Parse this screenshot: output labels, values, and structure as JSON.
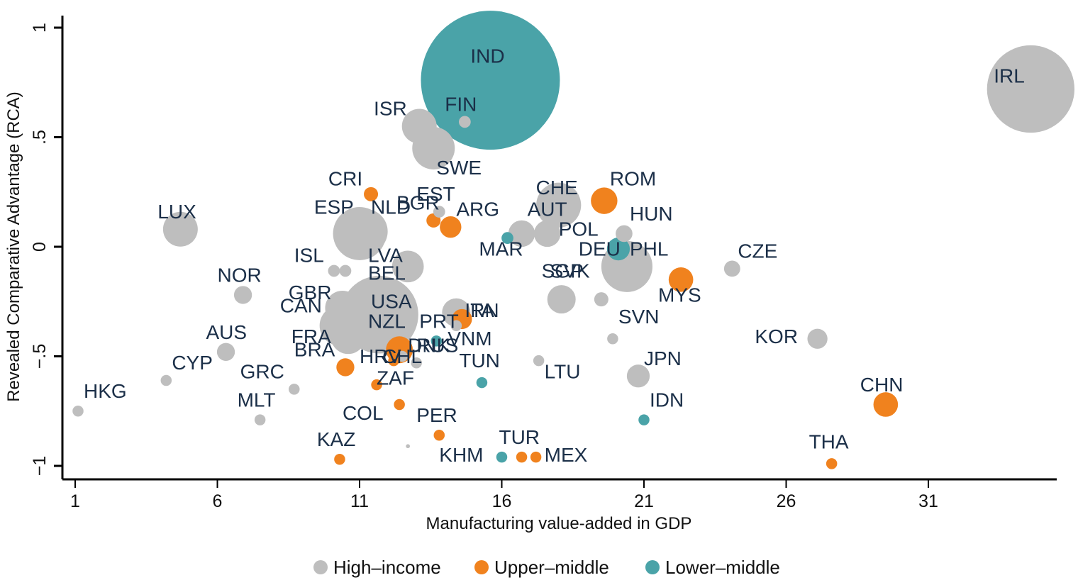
{
  "chart_data": {
    "type": "scatter",
    "title": "",
    "xlabel": "Manufacturing value-added in GDP",
    "ylabel": "Revealed Comparative Advantage (RCA)",
    "xlim": [
      0.8,
      35.5
    ],
    "ylim": [
      -1.05,
      1.05
    ],
    "xticks": [
      1,
      6,
      11,
      16,
      21,
      26,
      31
    ],
    "xtick_labels": [
      "1",
      "6",
      "11",
      "16",
      "21",
      "26",
      "31"
    ],
    "yticks": [
      1,
      0.5,
      0,
      -0.5,
      -1
    ],
    "ytick_labels": [
      "1",
      ".5",
      "0",
      "-.5",
      "-1"
    ],
    "grid": false,
    "legend": {
      "placement": "bottom",
      "entries": [
        {
          "name": "High-income",
          "color": "#bebebe"
        },
        {
          "name": "Upper-middle",
          "color": "#f0821e"
        },
        {
          "name": "Lower-middle",
          "color": "#4aa3a8"
        }
      ]
    },
    "size_note": "bubble size = relative weight",
    "points": [
      {
        "label": "IND",
        "x": 15.6,
        "y": 0.76,
        "size": 96,
        "group": "Lower-middle",
        "lx": -0.7,
        "ly": 0.08
      },
      {
        "label": "IRL",
        "x": 34.6,
        "y": 0.72,
        "size": 38,
        "group": "High-income",
        "lx": -1.3,
        "ly": 0.03
      },
      {
        "label": "USA",
        "x": 11.7,
        "y": -0.31,
        "size": 30,
        "group": "High-income",
        "lx": -0.3,
        "ly": 0.03
      },
      {
        "label": "ESP",
        "x": 11.0,
        "y": 0.06,
        "size": 14,
        "group": "High-income",
        "lx": -1.6,
        "ly": 0.09
      },
      {
        "label": "NLD",
        "x": 11.2,
        "y": 0.07,
        "size": 10,
        "group": "High-income",
        "lx": 0.2,
        "ly": 0.08
      },
      {
        "label": "DEU",
        "x": 20.4,
        "y": -0.09,
        "size": 13,
        "group": "High-income",
        "lx": -1.7,
        "ly": 0.05
      },
      {
        "label": "CHE",
        "x": 18.0,
        "y": 0.19,
        "size": 10,
        "group": "High-income",
        "lx": -0.8,
        "ly": 0.05
      },
      {
        "label": "SWE",
        "x": 13.6,
        "y": 0.45,
        "size": 9,
        "group": "High-income",
        "lx": 0.1,
        "ly": -0.12
      },
      {
        "label": "CAN",
        "x": 10.3,
        "y": -0.36,
        "size": 8,
        "group": "High-income",
        "lx": -2.1,
        "ly": 0.06
      },
      {
        "label": "GBR",
        "x": 10.4,
        "y": -0.28,
        "size": 6,
        "group": "High-income",
        "lx": -1.9,
        "ly": 0.04
      },
      {
        "label": "FRA",
        "x": 10.6,
        "y": -0.41,
        "size": 6,
        "group": "High-income",
        "lx": -2.0,
        "ly": -0.03
      },
      {
        "label": "NZL",
        "x": 11.9,
        "y": -0.33,
        "size": 5,
        "group": "High-income",
        "lx": -0.6,
        "ly": -0.04
      },
      {
        "label": "ISR",
        "x": 13.1,
        "y": 0.55,
        "size": 6,
        "group": "High-income",
        "lx": -1.6,
        "ly": 0.05
      },
      {
        "label": "LUX",
        "x": 4.7,
        "y": 0.08,
        "size": 6,
        "group": "High-income",
        "lx": -0.8,
        "ly": 0.05
      },
      {
        "label": "LVA",
        "x": 12.7,
        "y": -0.09,
        "size": 5,
        "group": "High-income",
        "lx": -1.4,
        "ly": 0.02
      },
      {
        "label": "ITA",
        "x": 14.4,
        "y": -0.3,
        "size": 4,
        "group": "High-income",
        "lx": 0.3,
        "ly": -0.02
      },
      {
        "label": "IRN",
        "x": 14.6,
        "y": -0.33,
        "size": 2,
        "group": "Upper-middle",
        "lx": 0.1,
        "ly": 0.01
      },
      {
        "label": "SGP",
        "x": 18.1,
        "y": -0.24,
        "size": 4,
        "group": "High-income",
        "lx": -0.7,
        "ly": 0.1
      },
      {
        "label": "SVK",
        "x": 19.5,
        "y": -0.24,
        "size": 1,
        "group": "High-income",
        "lx": -1.8,
        "ly": 0.1
      },
      {
        "label": "AUT",
        "x": 16.7,
        "y": 0.06,
        "size": 3.5,
        "group": "High-income",
        "lx": 0.2,
        "ly": 0.08
      },
      {
        "label": "POL",
        "x": 17.6,
        "y": 0.06,
        "size": 3.5,
        "group": "Upper-middle-hi",
        "lx": 0.4,
        "ly": -0.01
      },
      {
        "label": "ROM",
        "x": 19.6,
        "y": 0.21,
        "size": 3.5,
        "group": "Upper-middle",
        "lx": 0.2,
        "ly": 0.07
      },
      {
        "label": "MYS",
        "x": 22.3,
        "y": -0.15,
        "size": 3,
        "group": "Upper-middle",
        "lx": -0.8,
        "ly": -0.1
      },
      {
        "label": "CHN",
        "x": 29.5,
        "y": -0.72,
        "size": 3,
        "group": "Upper-middle",
        "lx": -0.9,
        "ly": 0.06
      },
      {
        "label": "JPN",
        "x": 20.8,
        "y": -0.59,
        "size": 2.6,
        "group": "High-income",
        "lx": 0.2,
        "ly": 0.05
      },
      {
        "label": "PHL",
        "x": 20.1,
        "y": -0.01,
        "size": 2.6,
        "group": "Lower-middle",
        "lx": 0.4,
        "ly": -0.03
      },
      {
        "label": "RUS",
        "x": 12.4,
        "y": -0.47,
        "size": 3.6,
        "group": "Upper-middle",
        "lx": 0.6,
        "ly": -0.01
      },
      {
        "label": "KOR",
        "x": 27.1,
        "y": -0.42,
        "size": 2,
        "group": "High-income",
        "lx": -2.2,
        "ly": -0.02
      },
      {
        "label": "ARG",
        "x": 14.2,
        "y": 0.09,
        "size": 2.3,
        "group": "Upper-middle",
        "lx": 0.2,
        "ly": 0.05
      },
      {
        "label": "BRA",
        "x": 10.5,
        "y": -0.55,
        "size": 1.6,
        "group": "Upper-middle",
        "lx": -1.8,
        "ly": 0.05
      },
      {
        "label": "AUS",
        "x": 6.3,
        "y": -0.48,
        "size": 1.6,
        "group": "High-income",
        "lx": -0.7,
        "ly": 0.06
      },
      {
        "label": "NOR",
        "x": 6.9,
        "y": -0.22,
        "size": 1.6,
        "group": "High-income",
        "lx": -0.9,
        "ly": 0.06
      },
      {
        "label": "HUN",
        "x": 20.3,
        "y": 0.06,
        "size": 1.4,
        "group": "High-income",
        "lx": 0.2,
        "ly": 0.06
      },
      {
        "label": "CZE",
        "x": 24.1,
        "y": -0.1,
        "size": 1.3,
        "group": "High-income",
        "lx": 0.2,
        "ly": 0.05
      },
      {
        "label": "CRI",
        "x": 11.4,
        "y": 0.24,
        "size": 1,
        "group": "Upper-middle",
        "lx": -1.5,
        "ly": 0.04
      },
      {
        "label": "BGR",
        "x": 13.6,
        "y": 0.12,
        "size": 1,
        "group": "Upper-middle",
        "lx": -1.3,
        "ly": 0.05
      },
      {
        "label": "EST",
        "x": 13.8,
        "y": 0.16,
        "size": 0.7,
        "group": "High-income",
        "lx": -0.8,
        "ly": 0.05
      },
      {
        "label": "FIN",
        "x": 14.7,
        "y": 0.57,
        "size": 0.7,
        "group": "High-income",
        "lx": -0.7,
        "ly": 0.05
      },
      {
        "label": "MAR",
        "x": 16.2,
        "y": 0.04,
        "size": 0.7,
        "group": "Lower-middle",
        "lx": -1.0,
        "ly": -0.08
      },
      {
        "label": "ISL",
        "x": 10.1,
        "y": -0.11,
        "size": 0.7,
        "group": "High-income",
        "lx": -1.4,
        "ly": 0.04
      },
      {
        "label": "BEL",
        "x": 10.5,
        "y": -0.11,
        "size": 0.7,
        "group": "High-income",
        "lx": 0.8,
        "ly": -0.04
      },
      {
        "label": "PRT",
        "x": 14.4,
        "y": -0.36,
        "size": 0.6,
        "group": "High-income",
        "lx": -1.3,
        "ly": -0.01
      },
      {
        "label": "VNM",
        "x": 13.7,
        "y": -0.43,
        "size": 0.6,
        "group": "Lower-middle",
        "lx": 0.4,
        "ly": -0.02
      },
      {
        "label": "DNK",
        "x": 12.5,
        "y": -0.5,
        "size": 0.6,
        "group": "High-income",
        "lx": 0.2,
        "ly": 0.02
      },
      {
        "label": "HRV",
        "x": 12.2,
        "y": -0.52,
        "size": 0.6,
        "group": "Upper-middle",
        "lx": -1.2,
        "ly": -0.01
      },
      {
        "label": "CHL",
        "x": 13.0,
        "y": -0.53,
        "size": 0.6,
        "group": "High-income",
        "lx": -1.2,
        "ly": 0.0
      },
      {
        "label": "ZAF",
        "x": 11.6,
        "y": -0.63,
        "size": 0.6,
        "group": "Upper-middle",
        "lx": 0.0,
        "ly": 0.0
      },
      {
        "label": "COL",
        "x": 12.4,
        "y": -0.72,
        "size": 0.6,
        "group": "Upper-middle",
        "lx": -2.0,
        "ly": -0.07
      },
      {
        "label": "PER",
        "x": 13.8,
        "y": -0.86,
        "size": 0.6,
        "group": "Upper-middle",
        "lx": -0.8,
        "ly": 0.06
      },
      {
        "label": "KAZ",
        "x": 10.3,
        "y": -0.97,
        "size": 0.6,
        "group": "Upper-middle",
        "lx": -0.8,
        "ly": 0.06
      },
      {
        "label": "KHM",
        "x": 16.0,
        "y": -0.96,
        "size": 0.6,
        "group": "Lower-middle",
        "lx": -2.2,
        "ly": -0.02
      },
      {
        "label": "TUR",
        "x": 16.7,
        "y": -0.96,
        "size": 0.6,
        "group": "Upper-middle",
        "lx": -0.8,
        "ly": 0.06
      },
      {
        "label": "MEX",
        "x": 17.2,
        "y": -0.96,
        "size": 0.6,
        "group": "Upper-middle",
        "lx": 0.3,
        "ly": -0.02
      },
      {
        "label": "TUN",
        "x": 15.3,
        "y": -0.62,
        "size": 0.6,
        "group": "Lower-middle",
        "lx": -0.8,
        "ly": 0.07
      },
      {
        "label": "LTU",
        "x": 17.3,
        "y": -0.52,
        "size": 0.6,
        "group": "High-income",
        "lx": 0.2,
        "ly": -0.08
      },
      {
        "label": "SVN",
        "x": 19.9,
        "y": -0.42,
        "size": 0.6,
        "group": "High-income",
        "lx": 0.2,
        "ly": 0.07
      },
      {
        "label": "IDN",
        "x": 21.0,
        "y": -0.79,
        "size": 0.6,
        "group": "Lower-middle",
        "lx": 0.2,
        "ly": 0.06
      },
      {
        "label": "THA",
        "x": 27.6,
        "y": -0.99,
        "size": 0.6,
        "group": "Upper-middle",
        "lx": -0.8,
        "ly": 0.07
      },
      {
        "label": "GRC",
        "x": 8.7,
        "y": -0.65,
        "size": 0.6,
        "group": "High-income",
        "lx": -1.9,
        "ly": 0.05
      },
      {
        "label": "MLT",
        "x": 7.5,
        "y": -0.79,
        "size": 0.6,
        "group": "High-income",
        "lx": -0.8,
        "ly": 0.06
      },
      {
        "label": "CYP",
        "x": 4.2,
        "y": -0.61,
        "size": 0.6,
        "group": "High-income",
        "lx": 0.2,
        "ly": 0.05
      },
      {
        "label": "HKG",
        "x": 1.1,
        "y": -0.75,
        "size": 0.6,
        "group": "High-income",
        "lx": 0.2,
        "ly": 0.06
      },
      {
        "label": "",
        "x": 12.7,
        "y": -0.91,
        "size": 0.08,
        "group": "High-income",
        "lx": 0,
        "ly": 0
      }
    ]
  }
}
